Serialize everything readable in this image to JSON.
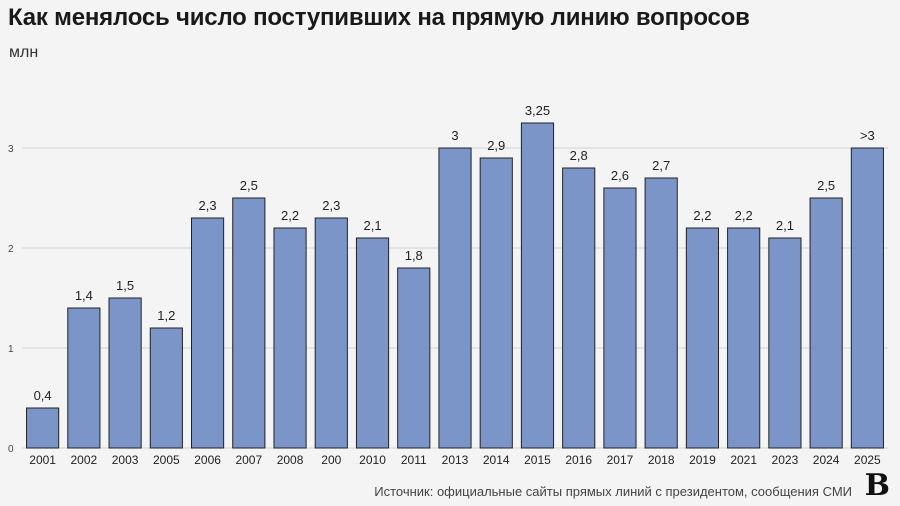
{
  "chart_data": {
    "type": "bar",
    "title": "Как менялось число поступивших на прямую линию вопросов",
    "unit": "млн",
    "categories": [
      "2001",
      "2002",
      "2003",
      "2005",
      "2006",
      "2007",
      "2008",
      "200",
      "2010",
      "2011",
      "2013",
      "2014",
      "2015",
      "2016",
      "2017",
      "2018",
      "2019",
      "2021",
      "2023",
      "2024",
      "2025"
    ],
    "values": [
      0.4,
      1.4,
      1.5,
      1.2,
      2.3,
      2.5,
      2.2,
      2.3,
      2.1,
      1.8,
      3,
      2.9,
      3.25,
      2.8,
      2.6,
      2.7,
      2.2,
      2.2,
      2.1,
      2.5,
      3
    ],
    "value_labels": [
      "0,4",
      "1,4",
      "1,5",
      "1,2",
      "2,3",
      "2,5",
      "2,2",
      "2,3",
      "2,1",
      "1,8",
      "3",
      "2,9",
      "3,25",
      "2,8",
      "2,6",
      "2,7",
      "2,2",
      "2,2",
      "2,1",
      "2,5",
      ">3"
    ],
    "ylim": [
      0,
      3.5
    ],
    "y_ticks": [
      0,
      1,
      2,
      3
    ],
    "y_tick_labels": [
      "0",
      "1",
      "2",
      "3"
    ],
    "grid": true,
    "bar_color": "#7b95c8",
    "source": "Источник: официальные сайты прямых линий с президентом, сообщения СМИ",
    "brand": "В"
  }
}
